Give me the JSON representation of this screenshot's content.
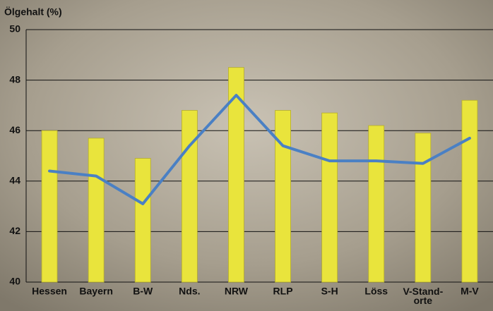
{
  "chart_data": {
    "type": "bar",
    "y_label": "Ölgehalt (%)",
    "categories": [
      "Hessen",
      "Bayern",
      "B-W",
      "Nds.",
      "NRW",
      "RLP",
      "S-H",
      "Löss",
      "V-Stand-\norte",
      "M-V"
    ],
    "series": [
      {
        "type": "bar",
        "color": "#e9e43c",
        "values": [
          46.0,
          45.7,
          44.9,
          46.8,
          48.5,
          46.8,
          46.7,
          46.2,
          45.9,
          47.2
        ]
      },
      {
        "type": "line",
        "color": "#4a80c4",
        "values": [
          44.4,
          44.2,
          43.1,
          45.4,
          47.4,
          45.4,
          44.8,
          44.8,
          44.7,
          45.7
        ]
      }
    ],
    "ylim": [
      40,
      50
    ],
    "yticks": [
      40,
      42,
      44,
      46,
      48,
      50
    ],
    "grid": true
  }
}
